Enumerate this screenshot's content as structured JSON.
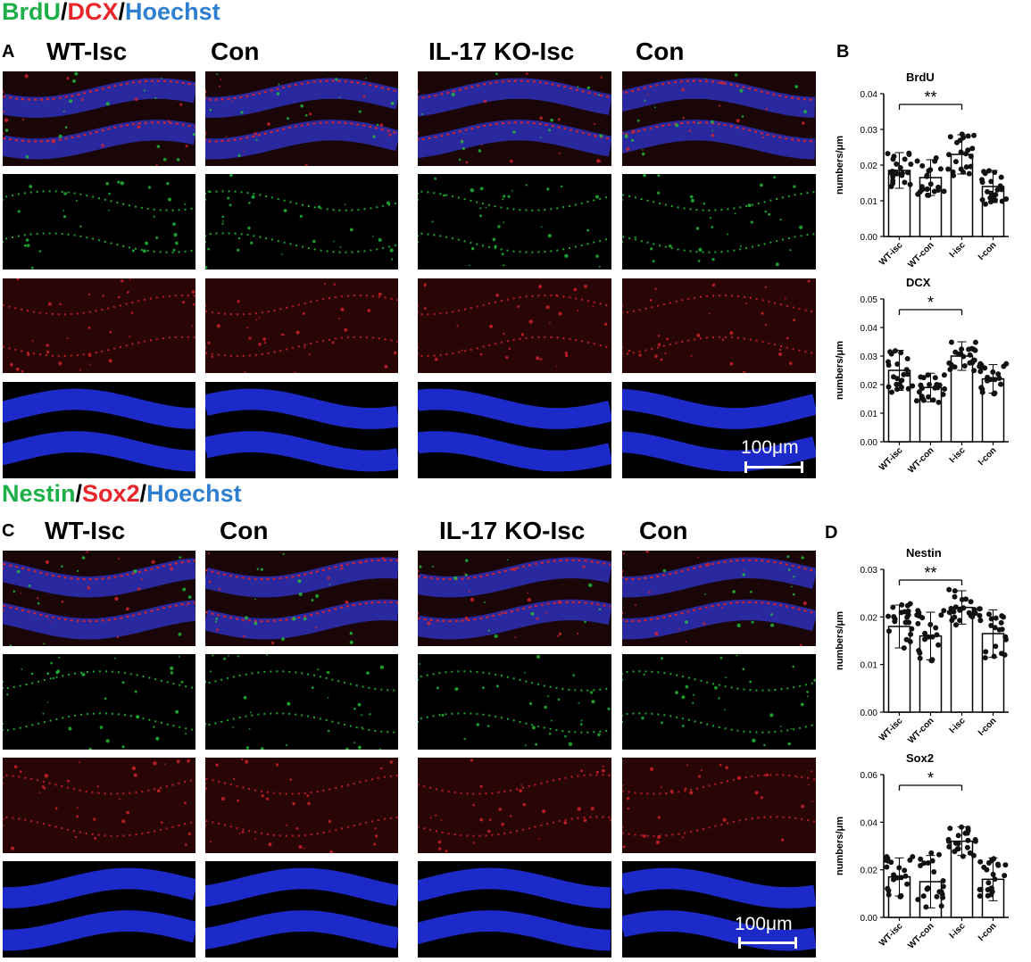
{
  "stain_titles": [
    {
      "parts": [
        {
          "text": "BrdU",
          "color": "#1db04a"
        },
        {
          "text": "/",
          "color": "#000000"
        },
        {
          "text": "DCX",
          "color": "#e8262b"
        },
        {
          "text": "/",
          "color": "#000000"
        },
        {
          "text": "Hoechst",
          "color": "#2f7fd0"
        }
      ]
    },
    {
      "parts": [
        {
          "text": "Nestin",
          "color": "#1db04a"
        },
        {
          "text": "/",
          "color": "#000000"
        },
        {
          "text": "Sox2",
          "color": "#e8262b"
        },
        {
          "text": "/",
          "color": "#000000"
        },
        {
          "text": "Hoechst",
          "color": "#2f7fd0"
        }
      ]
    }
  ],
  "panel_letters": {
    "a": "A",
    "b": "B",
    "c": "C",
    "d": "D"
  },
  "column_labels_top": [
    "WT-Isc",
    "Con",
    "IL-17 KO-Isc",
    "Con"
  ],
  "column_labels_bottom": [
    "WT-Isc",
    "Con",
    "IL-17 KO-Isc",
    "Con"
  ],
  "scale_bar_label": "100μm",
  "channel_colors": {
    "merge": "#2a2aa8",
    "green": "#23c23a",
    "red": "#d6232b",
    "blue": "#1f2fe0"
  },
  "chart_data": [
    {
      "type": "bar",
      "title": "BrdU",
      "ylabel": "numbers/μm",
      "categories": [
        "WT-isc",
        "WT-con",
        "I-isc",
        "I-con"
      ],
      "values": [
        0.0185,
        0.0165,
        0.023,
        0.014
      ],
      "errors": [
        0.005,
        0.005,
        0.0055,
        0.0045
      ],
      "ylim": [
        0,
        0.04
      ],
      "yticks": [
        "0.00",
        "0.01",
        "0.02",
        "0.03",
        "0.04"
      ],
      "significance": {
        "from": 0,
        "to": 2,
        "label": "**"
      }
    },
    {
      "type": "bar",
      "title": "DCX",
      "ylabel": "numbers/μm",
      "categories": [
        "WT-isc",
        "WT-con",
        "I-isc",
        "I-con"
      ],
      "values": [
        0.025,
        0.019,
        0.03,
        0.022
      ],
      "errors": [
        0.007,
        0.005,
        0.005,
        0.005
      ],
      "ylim": [
        0,
        0.05
      ],
      "yticks": [
        "0.00",
        "0.01",
        "0.02",
        "0.03",
        "0.04",
        "0.05"
      ],
      "significance": {
        "from": 0,
        "to": 2,
        "label": "*"
      }
    },
    {
      "type": "bar",
      "title": "Nestin",
      "ylabel": "numbers/μm",
      "categories": [
        "WT-isc",
        "WT-con",
        "I-isc",
        "I-con"
      ],
      "values": [
        0.018,
        0.016,
        0.022,
        0.0165
      ],
      "errors": [
        0.0045,
        0.005,
        0.0035,
        0.005
      ],
      "ylim": [
        0,
        0.03
      ],
      "yticks": [
        "0.00",
        "0.01",
        "0.02",
        "0.03"
      ],
      "significance": {
        "from": 0,
        "to": 2,
        "label": "**"
      }
    },
    {
      "type": "bar",
      "title": "Sox2",
      "ylabel": "numbers/μm",
      "categories": [
        "WT-isc",
        "WT-con",
        "I-isc",
        "I-con"
      ],
      "values": [
        0.017,
        0.015,
        0.032,
        0.016
      ],
      "errors": [
        0.008,
        0.011,
        0.006,
        0.009
      ],
      "ylim": [
        0,
        0.06
      ],
      "yticks": [
        "0.00",
        "0.02",
        "0.04",
        "0.06"
      ],
      "significance": {
        "from": 0,
        "to": 2,
        "label": "*"
      }
    }
  ]
}
